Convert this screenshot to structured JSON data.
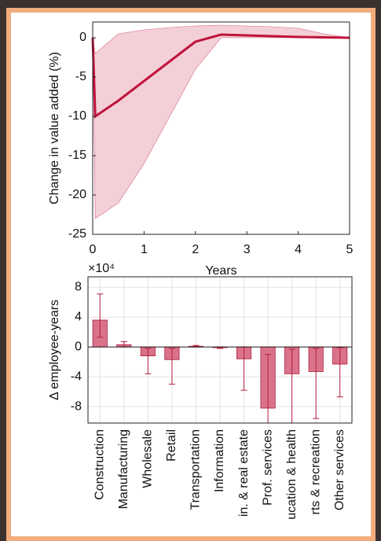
{
  "chart_data": [
    {
      "type": "line",
      "ylabel": "Change in value added (%)",
      "xlabel": "Years",
      "x": [
        0,
        0.05,
        0.5,
        1,
        1.5,
        2,
        2.5,
        3,
        3.5,
        4,
        4.5,
        5
      ],
      "values": [
        0,
        -10,
        -8,
        -5.5,
        -3,
        -0.5,
        0.4,
        0.3,
        0.2,
        0.1,
        0.05,
        0
      ],
      "upper": [
        0,
        -2,
        0.5,
        1,
        1.3,
        1.5,
        1.6,
        1.5,
        1.4,
        1.2,
        0.5,
        0
      ],
      "lower": [
        0,
        -23,
        -21,
        -16,
        -10,
        -4,
        0,
        0,
        0,
        0,
        0,
        0
      ],
      "color": "#c0143c",
      "band_color": "#f3cfd7",
      "xlim": [
        0,
        5
      ],
      "xticks": [
        0,
        1,
        2,
        3,
        4,
        5
      ],
      "ylim": [
        -25,
        2
      ],
      "yticks": [
        0,
        -5,
        -10,
        -15,
        -20,
        -25
      ]
    },
    {
      "type": "bar",
      "ylabel": "Δ employee-years",
      "multiplier": "×10⁴",
      "categories": [
        "Construction",
        "Manufacturing",
        "Wholesale",
        "Retail",
        "Transportation",
        "Information",
        "in. & real estate",
        "Prof. services",
        "ucation & health",
        "rts & recreation",
        "Other services"
      ],
      "values": [
        3.6,
        0.3,
        -1.2,
        -1.7,
        0.1,
        -0.1,
        -1.6,
        -8.2,
        -3.6,
        -3.3,
        -2.3
      ],
      "err_low": [
        1.3,
        0,
        -3.6,
        -5,
        0,
        -0.2,
        -5.8,
        -1,
        -10.2,
        -9.6,
        -6.7
      ],
      "err_high": [
        7.1,
        0.7,
        -0.2,
        -0.2,
        0.2,
        0,
        0,
        -10.2,
        -0.3,
        -0.2,
        -0.1
      ],
      "color": "#d9728a",
      "edge_color": "#b3203f",
      "ylim": [
        -10.2,
        9.4
      ],
      "yticks": [
        8,
        4,
        0,
        -4,
        -8
      ],
      "grid": true
    }
  ]
}
